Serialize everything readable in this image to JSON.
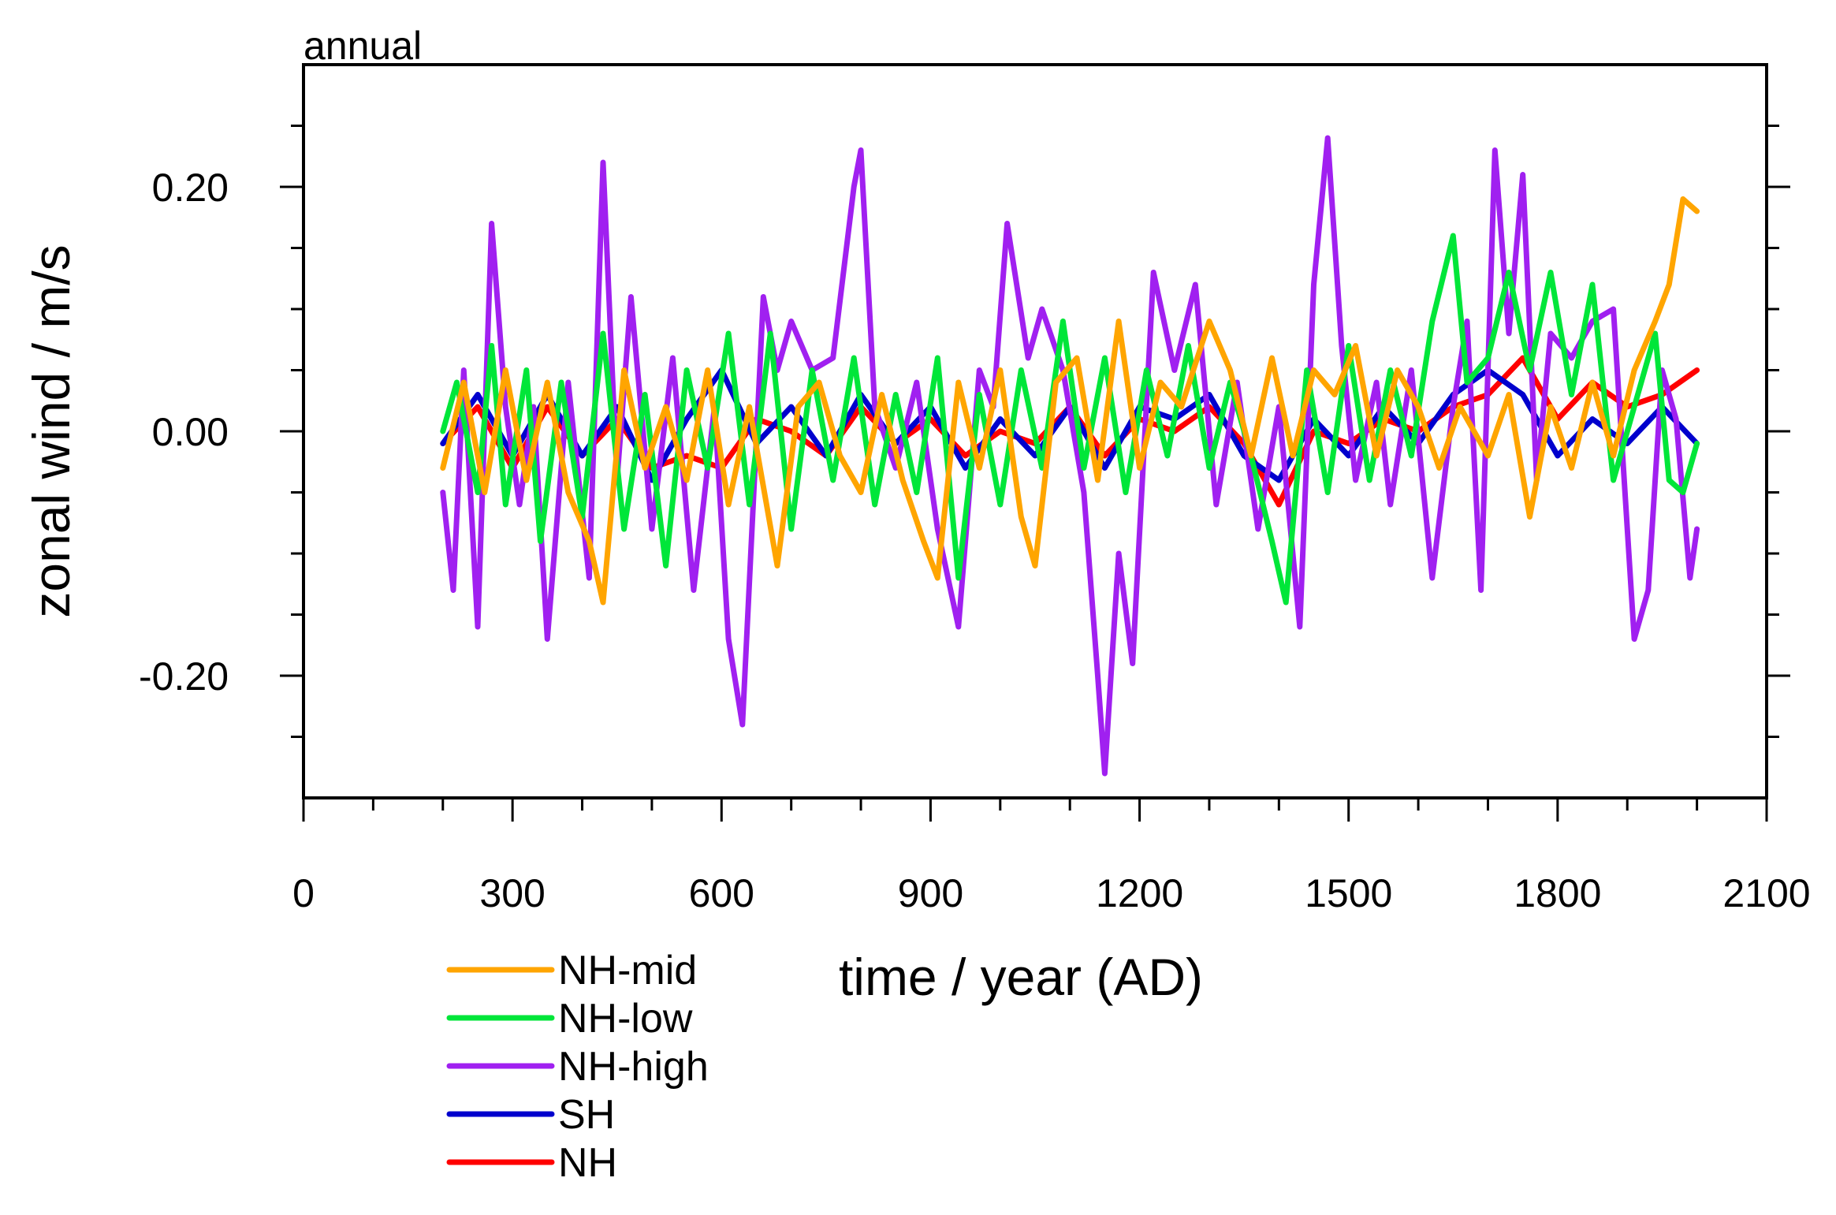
{
  "chart_data": {
    "type": "line",
    "panel_label": "annual",
    "xlabel": "time / year (AD)",
    "ylabel": "zonal wind / m/s",
    "xlim": [
      0,
      2100
    ],
    "ylim": [
      -0.3,
      0.3
    ],
    "x_ticks": [
      0,
      300,
      600,
      900,
      1200,
      1500,
      1800,
      2100
    ],
    "x_tick_labels": [
      "0",
      "300",
      "600",
      "900",
      "1200",
      "1500",
      "1800",
      "2100"
    ],
    "x_minor_step": 100,
    "y_ticks": [
      -0.2,
      0.0,
      0.2
    ],
    "y_tick_labels": [
      "-0.20",
      "0.00",
      "0.20"
    ],
    "y_minor_step": 0.05,
    "grid": false,
    "legend_position": "bottom-left, below plot",
    "series": [
      {
        "name": "NH-mid",
        "color": "#ffa500",
        "x": [
          200,
          230,
          260,
          290,
          320,
          350,
          380,
          410,
          430,
          460,
          490,
          520,
          550,
          580,
          610,
          640,
          680,
          710,
          740,
          770,
          800,
          830,
          860,
          890,
          910,
          940,
          970,
          1000,
          1030,
          1050,
          1080,
          1110,
          1140,
          1170,
          1200,
          1230,
          1260,
          1300,
          1330,
          1360,
          1390,
          1420,
          1450,
          1480,
          1510,
          1540,
          1570,
          1600,
          1630,
          1660,
          1700,
          1730,
          1760,
          1790,
          1820,
          1850,
          1880,
          1910,
          1940,
          1960,
          1980,
          2000
        ],
        "values": [
          -0.03,
          0.04,
          -0.05,
          0.05,
          -0.04,
          0.04,
          -0.05,
          -0.09,
          -0.14,
          0.05,
          -0.03,
          0.02,
          -0.04,
          0.05,
          -0.06,
          0.02,
          -0.11,
          0.02,
          0.04,
          -0.02,
          -0.05,
          0.03,
          -0.04,
          -0.09,
          -0.12,
          0.04,
          -0.03,
          0.05,
          -0.07,
          -0.11,
          0.04,
          0.06,
          -0.04,
          0.09,
          -0.03,
          0.04,
          0.02,
          0.09,
          0.05,
          -0.02,
          0.06,
          -0.02,
          0.05,
          0.03,
          0.07,
          -0.02,
          0.05,
          0.02,
          -0.03,
          0.02,
          -0.02,
          0.03,
          -0.07,
          0.02,
          -0.03,
          0.04,
          -0.02,
          0.05,
          0.09,
          0.12,
          0.19,
          0.18
        ]
      },
      {
        "name": "NH-low",
        "color": "#00e639",
        "x": [
          200,
          220,
          250,
          270,
          290,
          320,
          340,
          370,
          400,
          430,
          460,
          490,
          520,
          550,
          580,
          610,
          640,
          670,
          700,
          730,
          760,
          790,
          820,
          850,
          880,
          910,
          940,
          970,
          1000,
          1030,
          1060,
          1090,
          1120,
          1150,
          1180,
          1210,
          1240,
          1270,
          1300,
          1330,
          1360,
          1390,
          1410,
          1440,
          1470,
          1500,
          1530,
          1560,
          1590,
          1620,
          1650,
          1670,
          1700,
          1730,
          1760,
          1790,
          1820,
          1850,
          1880,
          1910,
          1940,
          1960,
          1980,
          2000
        ],
        "values": [
          0.0,
          0.04,
          -0.05,
          0.07,
          -0.06,
          0.05,
          -0.09,
          0.04,
          -0.07,
          0.08,
          -0.08,
          0.03,
          -0.11,
          0.05,
          -0.03,
          0.08,
          -0.06,
          0.08,
          -0.08,
          0.05,
          -0.04,
          0.06,
          -0.06,
          0.03,
          -0.05,
          0.06,
          -0.12,
          0.03,
          -0.06,
          0.05,
          -0.03,
          0.09,
          -0.03,
          0.06,
          -0.05,
          0.05,
          -0.02,
          0.07,
          -0.03,
          0.04,
          -0.02,
          -0.09,
          -0.14,
          0.05,
          -0.05,
          0.07,
          -0.04,
          0.05,
          -0.02,
          0.09,
          0.16,
          0.04,
          0.06,
          0.13,
          0.05,
          0.13,
          0.03,
          0.12,
          -0.04,
          0.02,
          0.08,
          -0.04,
          -0.05,
          -0.01
        ]
      },
      {
        "name": "NH-high",
        "color": "#a020f0",
        "x": [
          200,
          215,
          230,
          250,
          270,
          290,
          310,
          330,
          350,
          380,
          410,
          430,
          450,
          470,
          500,
          530,
          560,
          590,
          610,
          630,
          660,
          680,
          700,
          730,
          760,
          790,
          800,
          820,
          850,
          880,
          910,
          940,
          970,
          990,
          1010,
          1040,
          1060,
          1090,
          1120,
          1140,
          1150,
          1170,
          1190,
          1220,
          1250,
          1280,
          1310,
          1340,
          1370,
          1400,
          1430,
          1450,
          1470,
          1490,
          1510,
          1540,
          1560,
          1590,
          1620,
          1650,
          1670,
          1690,
          1710,
          1730,
          1750,
          1770,
          1790,
          1820,
          1850,
          1880,
          1910,
          1930,
          1950,
          1970,
          1990,
          2000
        ],
        "values": [
          -0.05,
          -0.13,
          0.05,
          -0.16,
          0.17,
          0.02,
          -0.06,
          0.02,
          -0.17,
          0.04,
          -0.12,
          0.22,
          -0.04,
          0.11,
          -0.08,
          0.06,
          -0.13,
          0.02,
          -0.17,
          -0.24,
          0.11,
          0.05,
          0.09,
          0.05,
          0.06,
          0.2,
          0.23,
          0.02,
          -0.03,
          0.04,
          -0.08,
          -0.16,
          0.05,
          0.02,
          0.17,
          0.06,
          0.1,
          0.05,
          -0.05,
          -0.2,
          -0.28,
          -0.1,
          -0.19,
          0.13,
          0.05,
          0.12,
          -0.06,
          0.04,
          -0.08,
          0.02,
          -0.16,
          0.12,
          0.24,
          0.07,
          -0.04,
          0.04,
          -0.06,
          0.05,
          -0.12,
          0.02,
          0.09,
          -0.13,
          0.23,
          0.08,
          0.21,
          -0.04,
          0.08,
          0.06,
          0.09,
          0.1,
          -0.17,
          -0.13,
          0.05,
          0.01,
          -0.12,
          -0.08
        ]
      },
      {
        "name": "SH",
        "color": "#0000cd",
        "x": [
          200,
          250,
          300,
          350,
          400,
          450,
          500,
          550,
          600,
          650,
          700,
          750,
          800,
          850,
          900,
          950,
          1000,
          1050,
          1100,
          1150,
          1200,
          1250,
          1300,
          1350,
          1400,
          1450,
          1500,
          1550,
          1600,
          1650,
          1700,
          1750,
          1800,
          1850,
          1900,
          1950,
          2000
        ],
        "values": [
          -0.01,
          0.03,
          -0.02,
          0.03,
          -0.02,
          0.02,
          -0.04,
          0.01,
          0.05,
          -0.01,
          0.02,
          -0.02,
          0.03,
          -0.01,
          0.02,
          -0.03,
          0.01,
          -0.02,
          0.02,
          -0.03,
          0.02,
          0.01,
          0.03,
          -0.02,
          -0.04,
          0.01,
          -0.02,
          0.02,
          -0.01,
          0.03,
          0.05,
          0.03,
          -0.02,
          0.01,
          -0.01,
          0.02,
          -0.01
        ]
      },
      {
        "name": "NH",
        "color": "#ff0000",
        "x": [
          200,
          250,
          300,
          350,
          400,
          450,
          500,
          550,
          600,
          650,
          700,
          750,
          800,
          850,
          900,
          950,
          1000,
          1050,
          1100,
          1150,
          1200,
          1250,
          1300,
          1350,
          1400,
          1450,
          1500,
          1550,
          1600,
          1650,
          1700,
          1750,
          1800,
          1850,
          1900,
          1950,
          2000
        ],
        "values": [
          -0.01,
          0.02,
          -0.03,
          0.02,
          -0.02,
          0.01,
          -0.03,
          -0.02,
          -0.03,
          0.01,
          0.0,
          -0.02,
          0.02,
          -0.01,
          0.01,
          -0.02,
          0.0,
          -0.01,
          0.02,
          -0.02,
          0.01,
          0.0,
          0.02,
          -0.01,
          -0.06,
          0.0,
          -0.01,
          0.01,
          0.0,
          0.02,
          0.03,
          0.06,
          0.01,
          0.04,
          0.02,
          0.03,
          0.05
        ]
      }
    ]
  }
}
